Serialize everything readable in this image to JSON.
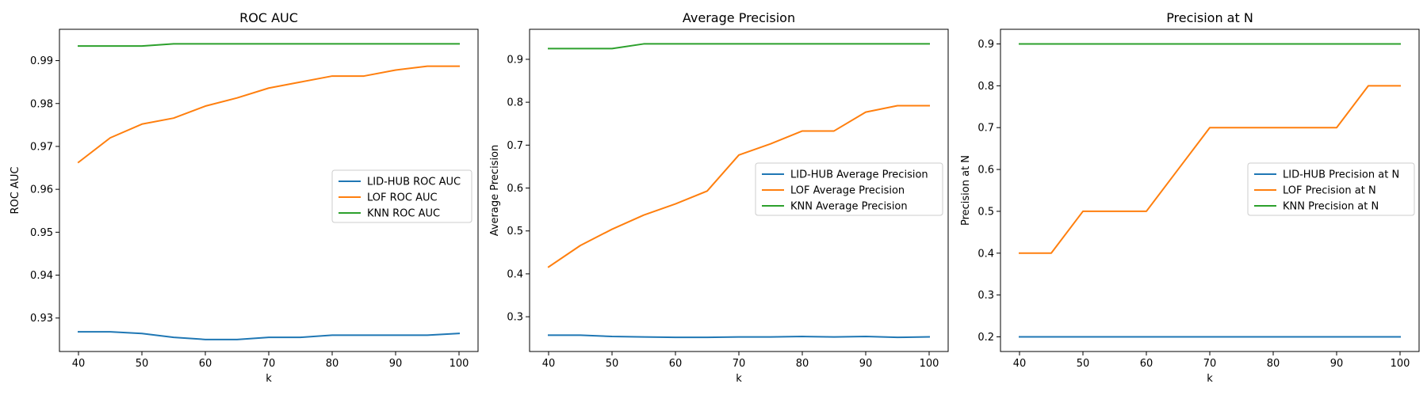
{
  "chart_data": [
    {
      "type": "line",
      "title": "ROC AUC",
      "xlabel": "k",
      "ylabel": "ROC AUC",
      "x": [
        40,
        45,
        50,
        55,
        60,
        65,
        70,
        75,
        80,
        85,
        90,
        95,
        100
      ],
      "xticks": [
        40,
        50,
        60,
        70,
        80,
        90,
        100
      ],
      "yticks": [
        0.93,
        0.94,
        0.95,
        0.96,
        0.97,
        0.98,
        0.99
      ],
      "ytick_labels": [
        "0.93",
        "0.94",
        "0.95",
        "0.96",
        "0.97",
        "0.98",
        "0.99"
      ],
      "xlim": [
        37,
        103
      ],
      "ylim": [
        0.9222,
        0.9973
      ],
      "grid": false,
      "legend": "center-right",
      "series": [
        {
          "name": "LID-HUB ROC AUC",
          "color": "#1f77b4",
          "values": [
            0.9268,
            0.9268,
            0.9264,
            0.9255,
            0.925,
            0.925,
            0.9255,
            0.9255,
            0.926,
            0.926,
            0.926,
            0.926,
            0.9264
          ]
        },
        {
          "name": "LOF ROC AUC",
          "color": "#ff7f0e",
          "values": [
            0.9663,
            0.972,
            0.9752,
            0.9766,
            0.9794,
            0.9813,
            0.9836,
            0.985,
            0.9864,
            0.9864,
            0.9878,
            0.9887,
            0.9887
          ]
        },
        {
          "name": "KNN ROC AUC",
          "color": "#2ca02c",
          "values": [
            0.9934,
            0.9934,
            0.9934,
            0.9939,
            0.9939,
            0.9939,
            0.9939,
            0.9939,
            0.9939,
            0.9939,
            0.9939,
            0.9939,
            0.9939
          ]
        }
      ]
    },
    {
      "type": "line",
      "title": "Average Precision",
      "xlabel": "k",
      "ylabel": "Average Precision",
      "x": [
        40,
        45,
        50,
        55,
        60,
        65,
        70,
        75,
        80,
        85,
        90,
        95,
        100
      ],
      "xticks": [
        40,
        50,
        60,
        70,
        80,
        90,
        100
      ],
      "yticks": [
        0.3,
        0.4,
        0.5,
        0.6,
        0.7,
        0.8,
        0.9
      ],
      "ytick_labels": [
        "0.3",
        "0.4",
        "0.5",
        "0.6",
        "0.7",
        "0.8",
        "0.9"
      ],
      "xlim": [
        37,
        103
      ],
      "ylim": [
        0.219,
        0.97
      ],
      "grid": false,
      "legend": "center-right",
      "series": [
        {
          "name": "LID-HUB Average Precision",
          "color": "#1f77b4",
          "values": [
            0.257,
            0.257,
            0.254,
            0.253,
            0.252,
            0.252,
            0.253,
            0.253,
            0.254,
            0.253,
            0.254,
            0.252,
            0.253
          ]
        },
        {
          "name": "LOF Average Precision",
          "color": "#ff7f0e",
          "values": [
            0.416,
            0.466,
            0.504,
            0.537,
            0.563,
            0.593,
            0.677,
            0.703,
            0.733,
            0.733,
            0.777,
            0.792,
            0.792
          ]
        },
        {
          "name": "KNN Average Precision",
          "color": "#2ca02c",
          "values": [
            0.925,
            0.925,
            0.925,
            0.936,
            0.936,
            0.936,
            0.936,
            0.936,
            0.936,
            0.936,
            0.936,
            0.936,
            0.936
          ]
        }
      ]
    },
    {
      "type": "line",
      "title": "Precision at N",
      "xlabel": "k",
      "ylabel": "Precision at N",
      "x": [
        40,
        45,
        50,
        55,
        60,
        65,
        70,
        75,
        80,
        85,
        90,
        95,
        100
      ],
      "xticks": [
        40,
        50,
        60,
        70,
        80,
        90,
        100
      ],
      "yticks": [
        0.2,
        0.3,
        0.4,
        0.5,
        0.6,
        0.7,
        0.8,
        0.9
      ],
      "ytick_labels": [
        "0.2",
        "0.3",
        "0.4",
        "0.5",
        "0.6",
        "0.7",
        "0.8",
        "0.9"
      ],
      "xlim": [
        37,
        103
      ],
      "ylim": [
        0.165,
        0.935
      ],
      "grid": false,
      "legend": "center-right",
      "series": [
        {
          "name": "LID-HUB Precision at N",
          "color": "#1f77b4",
          "values": [
            0.2,
            0.2,
            0.2,
            0.2,
            0.2,
            0.2,
            0.2,
            0.2,
            0.2,
            0.2,
            0.2,
            0.2,
            0.2
          ]
        },
        {
          "name": "LOF Precision at N",
          "color": "#ff7f0e",
          "values": [
            0.4,
            0.4,
            0.5,
            0.5,
            0.5,
            0.6,
            0.7,
            0.7,
            0.7,
            0.7,
            0.7,
            0.8,
            0.8
          ]
        },
        {
          "name": "KNN Precision at N",
          "color": "#2ca02c",
          "values": [
            0.9,
            0.9,
            0.9,
            0.9,
            0.9,
            0.9,
            0.9,
            0.9,
            0.9,
            0.9,
            0.9,
            0.9,
            0.9
          ]
        }
      ]
    }
  ]
}
